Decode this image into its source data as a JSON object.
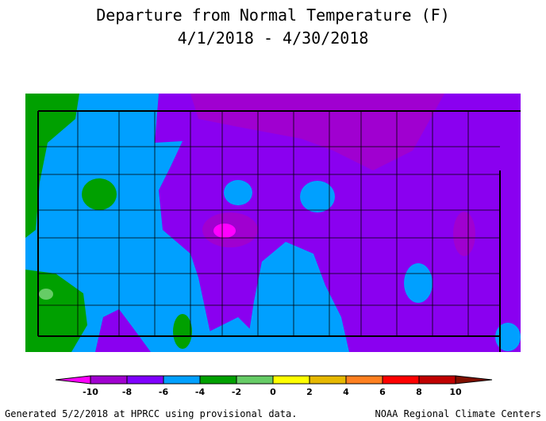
{
  "title": [
    "Departure from Normal Temperature (F)",
    "4/1/2018 - 4/30/2018"
  ],
  "colorbar": {
    "ticks": [
      -10,
      -8,
      -6,
      -4,
      -2,
      0,
      2,
      4,
      6,
      8,
      10
    ],
    "colors": [
      "#ff00ff",
      "#a000d0",
      "#8000ff",
      "#00a0ff",
      "#00a000",
      "#66cc66",
      "#ffff00",
      "#e6b800",
      "#ff8020",
      "#ff0000",
      "#c00000",
      "#801000"
    ]
  },
  "footer": {
    "left": "Generated 5/2/2018 at HPRCC using provisional data.",
    "right": "NOAA Regional Climate Centers"
  }
}
